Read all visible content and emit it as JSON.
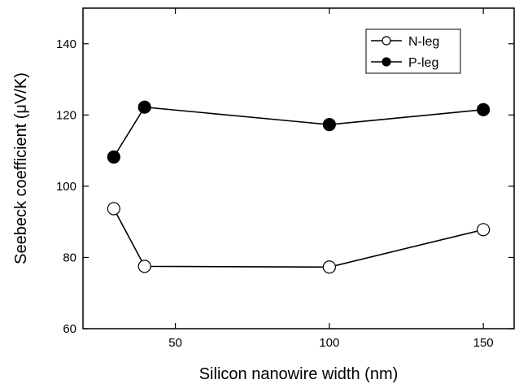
{
  "chart_data": {
    "type": "line",
    "xlabel": "Silicon nanowire width (nm)",
    "ylabel": "Seebeck coefficient (μV/K)",
    "xlim": [
      20,
      160
    ],
    "ylim": [
      60,
      150
    ],
    "xticks": [
      50,
      100,
      150
    ],
    "yticks": [
      60,
      80,
      100,
      120,
      140
    ],
    "grid": false,
    "legend_position": "top-right",
    "series": [
      {
        "name": "N-leg",
        "marker": "open-circle",
        "color": "#000000",
        "x": [
          30,
          40,
          100,
          150
        ],
        "y": [
          93.7,
          77.5,
          77.3,
          87.8
        ]
      },
      {
        "name": "P-leg",
        "marker": "filled-circle",
        "color": "#000000",
        "x": [
          30,
          40,
          100,
          150
        ],
        "y": [
          108.2,
          122.2,
          117.3,
          121.5
        ]
      }
    ]
  }
}
